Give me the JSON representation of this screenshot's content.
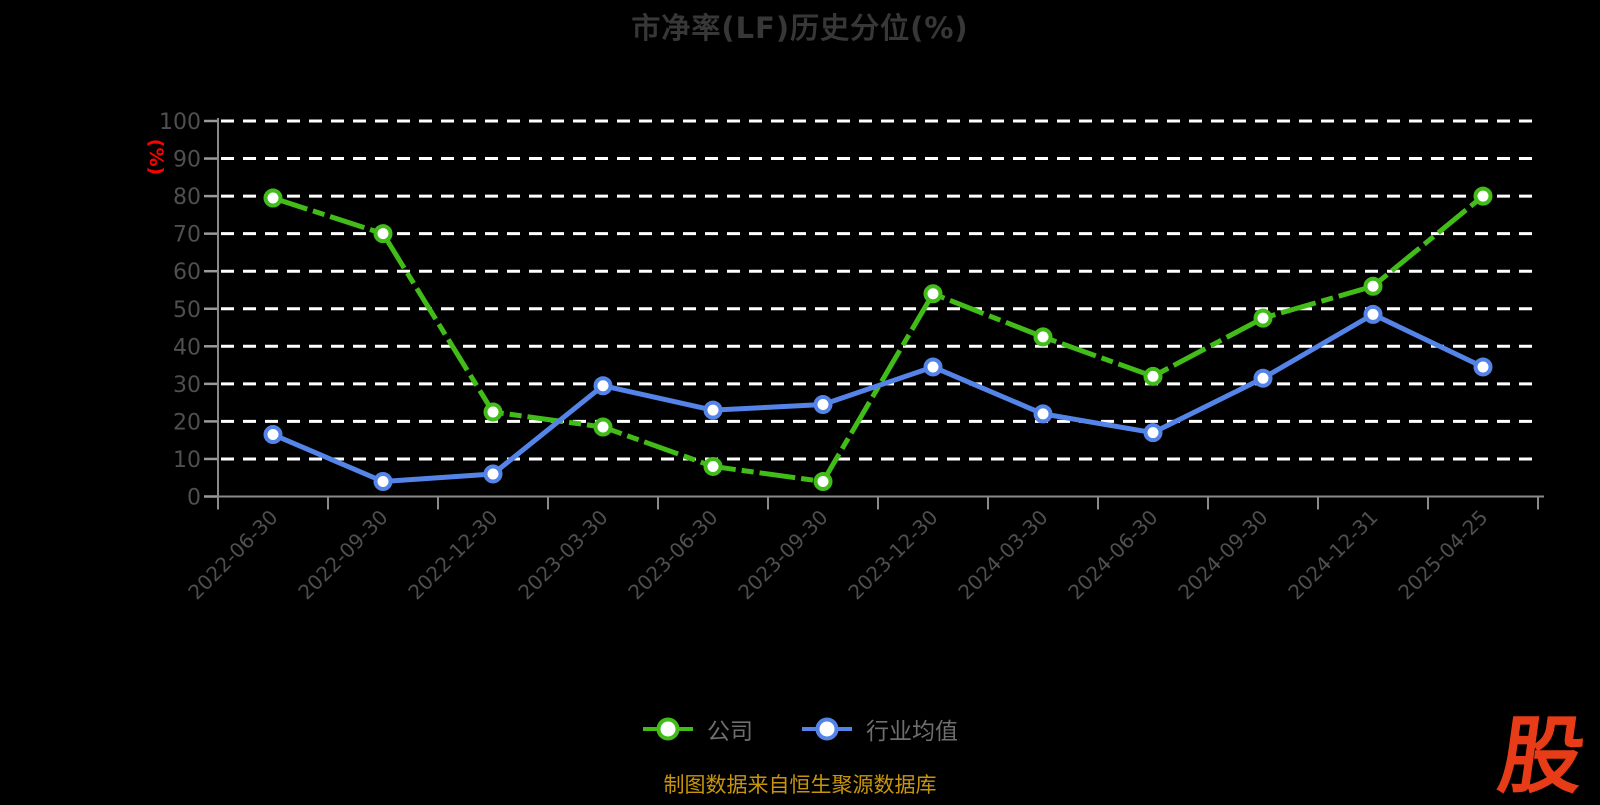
{
  "header": {
    "title": "市净率(LF)历史分位(%)"
  },
  "chart_data": {
    "type": "line",
    "title": "市净率(LF)历史分位(%)",
    "xlabel": "",
    "ylabel": "(%)",
    "ylim": [
      0,
      100
    ],
    "y_tick_step": 10,
    "grid": "dashed-white-horizontal",
    "legend_position": "bottom-center",
    "y_axis": {
      "unit_label": "(%)",
      "unit_color": "#ff0000"
    },
    "categories": [
      "2022-06-30",
      "2022-09-30",
      "2022-12-30",
      "2023-03-30",
      "2023-06-30",
      "2023-09-30",
      "2023-12-30",
      "2024-03-30",
      "2024-06-30",
      "2024-09-30",
      "2024-12-31",
      "2025-04-25"
    ],
    "series": [
      {
        "name": "公司",
        "color": "#41bc19",
        "line_style": "dash-dot",
        "marker": "circle-white-fill",
        "values": [
          79.5,
          70,
          22.5,
          18.5,
          8,
          4,
          54,
          42.5,
          32,
          47.5,
          56,
          80
        ]
      },
      {
        "name": "行业均值",
        "color": "#5584e8",
        "line_style": "solid",
        "marker": "circle-white-fill",
        "values": [
          16.5,
          4,
          6,
          29.5,
          23,
          24.5,
          34.5,
          22,
          17,
          31.5,
          48.5,
          34.5
        ]
      }
    ]
  },
  "footer": {
    "source_note": "制图数据来自恒生聚源数据库",
    "color": "#c8940b"
  },
  "logo": {
    "text": "股",
    "color": "#e73c17"
  }
}
